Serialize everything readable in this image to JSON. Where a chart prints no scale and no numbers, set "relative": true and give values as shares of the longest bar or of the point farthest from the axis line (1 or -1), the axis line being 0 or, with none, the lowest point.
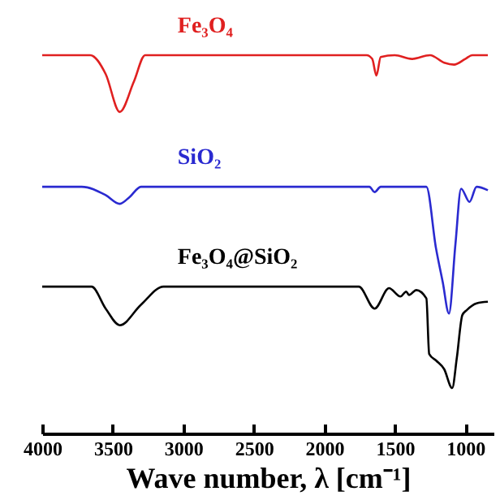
{
  "chart_data": {
    "type": "line",
    "relative": true,
    "xlabel": "Wave number, λ [cm⁻¹]",
    "xlim": [
      4000,
      800
    ],
    "xticks": [
      4000,
      3500,
      3000,
      2500,
      2000,
      1500,
      1000
    ],
    "grid": false,
    "legend": false,
    "series": [
      {
        "name": "Fe₃O₄",
        "color": "#e02020",
        "x": [
          4000,
          3660,
          3550,
          3450,
          3350,
          3270,
          1700,
          1660,
          1630,
          1600,
          1500,
          1380,
          1250,
          1150,
          1080,
          1000,
          950,
          840
        ],
        "values": [
          1,
          1,
          0.95,
          0.85,
          0.93,
          1,
          1,
          0.99,
          0.946,
          0.995,
          1,
          0.99,
          1,
          0.98,
          0.975,
          0.99,
          1,
          1
        ]
      },
      {
        "name": "SiO₂",
        "color": "#2a2ad0",
        "x": [
          4000,
          3720,
          3550,
          3450,
          3380,
          3300,
          1680,
          1643,
          1600,
          1276,
          1208,
          1160,
          1116,
          1070,
          1030,
          970,
          920,
          840
        ],
        "values": [
          0.652,
          0.652,
          0.63,
          0.607,
          0.625,
          0.652,
          0.652,
          0.638,
          0.652,
          0.652,
          0.49,
          0.4,
          0.317,
          0.5,
          0.647,
          0.612,
          0.652,
          0.643
        ]
      },
      {
        "name": "Fe₃O₄@SiO₂",
        "color": "#000000",
        "x": [
          4000,
          3650,
          3550,
          3450,
          3300,
          3140,
          1755,
          1643,
          1541,
          1460,
          1419,
          1399,
          1348,
          1276,
          1256,
          1205,
          1150,
          1093,
          1060,
          1021,
          990,
          920,
          840
        ],
        "values": [
          0.388,
          0.388,
          0.33,
          0.286,
          0.34,
          0.388,
          0.388,
          0.33,
          0.384,
          0.362,
          0.375,
          0.366,
          0.379,
          0.357,
          0.21,
          0.192,
          0.17,
          0.12,
          0.2,
          0.313,
          0.326,
          0.344,
          0.348
        ]
      }
    ]
  }
}
